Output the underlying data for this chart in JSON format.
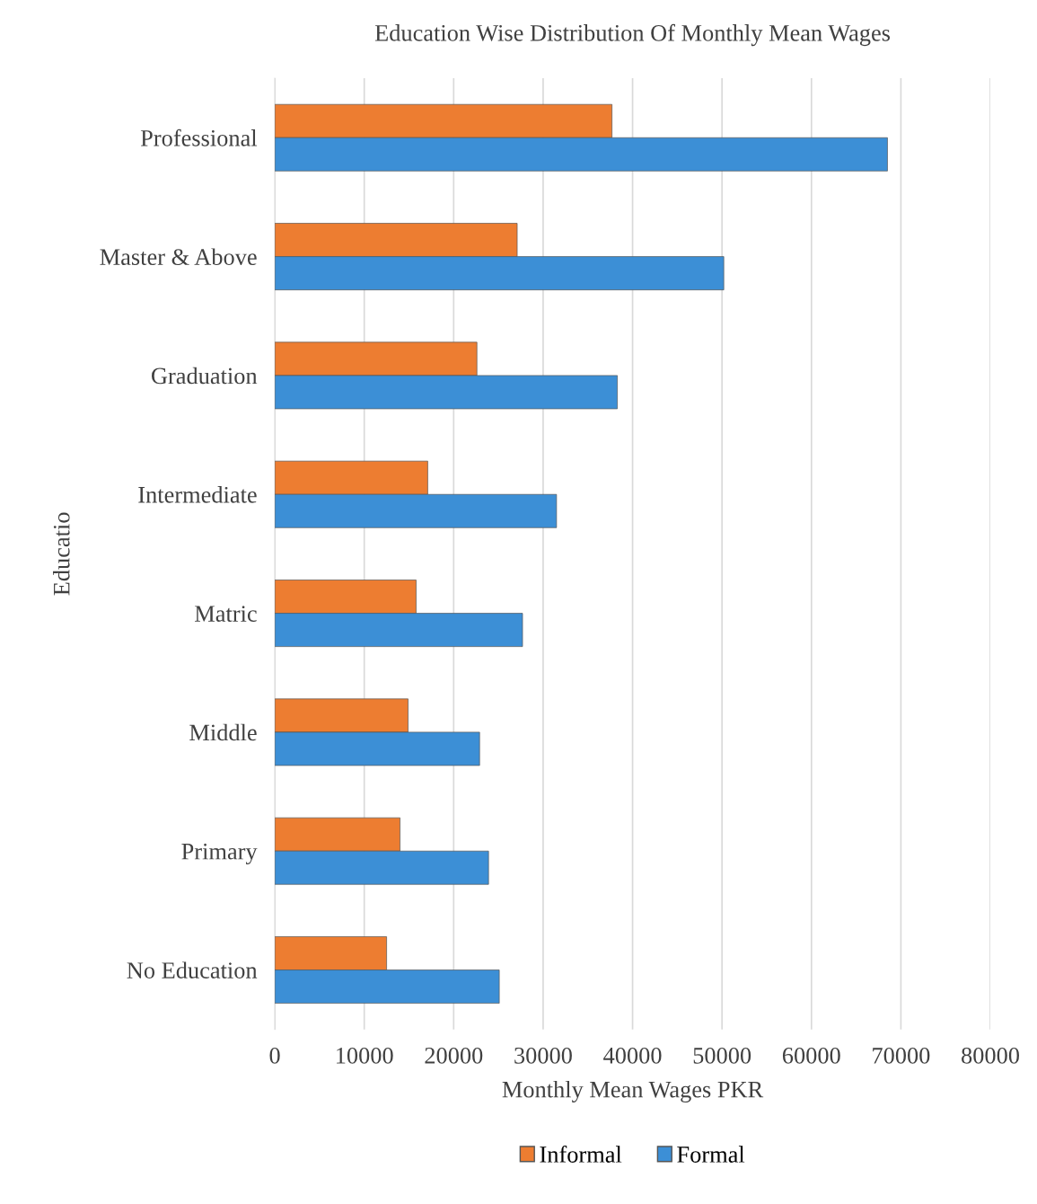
{
  "chart_data": {
    "type": "bar",
    "orientation": "horizontal",
    "title": "Education Wise Distribution Of Monthly Mean Wages",
    "xlabel": "Monthly Mean Wages PKR",
    "ylabel": "Educatio",
    "categories": [
      "Professional",
      "Master & Above",
      "Graduation",
      "Intermediate",
      "Matric",
      "Middle",
      "Primary",
      "No Education"
    ],
    "series": [
      {
        "name": "Informal",
        "color": "#ed7d31",
        "values": [
          37700,
          27100,
          22600,
          17100,
          15800,
          14900,
          14000,
          12500
        ]
      },
      {
        "name": "Formal",
        "color": "#3c8fd6",
        "values": [
          68500,
          50200,
          38300,
          31500,
          27700,
          22900,
          23900,
          25100
        ]
      }
    ],
    "xlim": [
      0,
      80000
    ],
    "xticks": [
      0,
      10000,
      20000,
      30000,
      40000,
      50000,
      60000,
      70000,
      80000
    ],
    "grid": "x",
    "legend": "bottom"
  }
}
